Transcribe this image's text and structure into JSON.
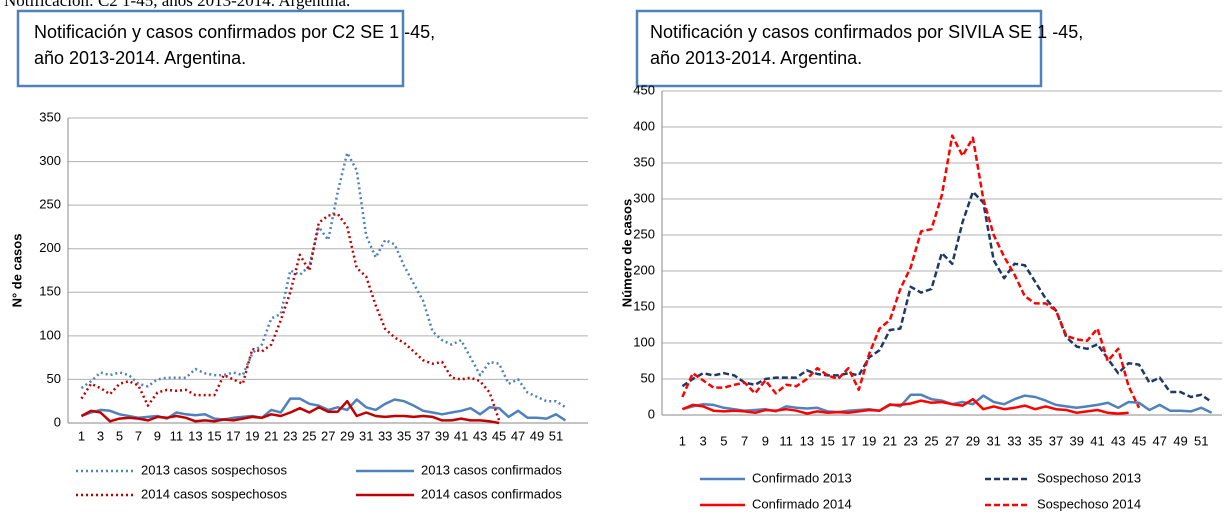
{
  "page_caption": "Notificación: C2 1-45, años 2013-2014. Argentina.",
  "chart_data": [
    {
      "type": "line",
      "title": [
        "Notificación y casos confirmados por C2 SE 1 -45,",
        "año 2013-2014. Argentina."
      ],
      "ylabel": "N° de casos",
      "x": [
        1,
        2,
        3,
        4,
        5,
        6,
        7,
        8,
        9,
        10,
        11,
        12,
        13,
        14,
        15,
        16,
        17,
        18,
        19,
        20,
        21,
        22,
        23,
        24,
        25,
        26,
        27,
        28,
        29,
        30,
        31,
        32,
        33,
        34,
        35,
        36,
        37,
        38,
        39,
        40,
        41,
        42,
        43,
        44,
        45,
        46,
        47,
        48,
        49,
        50,
        51,
        52
      ],
      "xlim": [
        0,
        53
      ],
      "xticks": [
        1,
        3,
        5,
        7,
        9,
        11,
        13,
        15,
        17,
        19,
        21,
        23,
        25,
        27,
        29,
        31,
        33,
        35,
        37,
        39,
        41,
        43,
        45,
        47,
        49,
        51
      ],
      "ylim": [
        0,
        350
      ],
      "yticks": [
        0,
        50,
        100,
        150,
        200,
        250,
        300,
        350
      ],
      "grid": true,
      "series": [
        {
          "name": "2013 casos sospechosos",
          "color": "#4f81bd",
          "line_style": "dotted",
          "values": [
            40,
            48,
            58,
            55,
            58,
            55,
            45,
            42,
            50,
            52,
            52,
            52,
            62,
            57,
            55,
            55,
            58,
            55,
            80,
            90,
            120,
            125,
            175,
            170,
            180,
            225,
            210,
            265,
            310,
            290,
            215,
            190,
            210,
            205,
            180,
            160,
            140,
            105,
            95,
            90,
            95,
            75,
            55,
            70,
            68,
            45,
            50,
            35,
            30,
            25,
            25,
            18
          ]
        },
        {
          "name": "2013 casos confirmados",
          "color": "#4f81bd",
          "line_style": "solid",
          "values": [
            8,
            12,
            15,
            14,
            10,
            8,
            6,
            7,
            8,
            5,
            12,
            10,
            9,
            10,
            5,
            4,
            6,
            7,
            8,
            6,
            15,
            12,
            28,
            28,
            22,
            20,
            15,
            18,
            15,
            27,
            18,
            15,
            22,
            27,
            25,
            20,
            14,
            12,
            10,
            12,
            14,
            17,
            10,
            18,
            17,
            7,
            14,
            6,
            6,
            5,
            10,
            3
          ]
        },
        {
          "name": "2014 casos sospechosos",
          "color": "#c00000",
          "line_style": "dotted",
          "values": [
            28,
            45,
            40,
            33,
            45,
            48,
            43,
            20,
            35,
            38,
            37,
            38,
            32,
            32,
            32,
            55,
            50,
            45,
            85,
            82,
            90,
            118,
            150,
            193,
            175,
            230,
            238,
            240,
            225,
            178,
            168,
            135,
            108,
            98,
            92,
            82,
            72,
            68,
            70,
            52,
            50,
            52,
            48,
            35,
            3,
            null,
            null,
            null,
            null,
            null,
            null,
            null
          ]
        },
        {
          "name": "2014 casos confirmados",
          "color": "#c00000",
          "line_style": "solid",
          "values": [
            8,
            14,
            12,
            2,
            5,
            6,
            5,
            3,
            7,
            6,
            8,
            6,
            2,
            3,
            2,
            4,
            3,
            5,
            7,
            6,
            10,
            8,
            12,
            17,
            12,
            18,
            13,
            13,
            25,
            8,
            12,
            8,
            7,
            8,
            8,
            7,
            8,
            7,
            3,
            3,
            5,
            3,
            3,
            2,
            0,
            null,
            null,
            null,
            null,
            null,
            null,
            null
          ]
        }
      ]
    },
    {
      "type": "line",
      "title": [
        "Notificación y casos confirmados por SIVILA SE 1 -45,",
        "año 2013-2014. Argentina."
      ],
      "ylabel": "Número de casos",
      "x": [
        1,
        2,
        3,
        4,
        5,
        6,
        7,
        8,
        9,
        10,
        11,
        12,
        13,
        14,
        15,
        16,
        17,
        18,
        19,
        20,
        21,
        22,
        23,
        24,
        25,
        26,
        27,
        28,
        29,
        30,
        31,
        32,
        33,
        34,
        35,
        36,
        37,
        38,
        39,
        40,
        41,
        42,
        43,
        44,
        45,
        46,
        47,
        48,
        49,
        50,
        51,
        52
      ],
      "xlim": [
        0,
        53
      ],
      "xticks": [
        1,
        3,
        5,
        7,
        9,
        11,
        13,
        15,
        17,
        19,
        21,
        23,
        25,
        27,
        29,
        31,
        33,
        35,
        37,
        39,
        41,
        43,
        45,
        47,
        49,
        51
      ],
      "ylim": [
        0,
        450
      ],
      "yticks": [
        0,
        50,
        100,
        150,
        200,
        250,
        300,
        350,
        400,
        450
      ],
      "grid": true,
      "series": [
        {
          "name": "Confirmado 2013",
          "color": "#4f81bd",
          "line_style": "solid",
          "values": [
            8,
            12,
            15,
            14,
            10,
            8,
            6,
            7,
            8,
            5,
            12,
            10,
            9,
            10,
            5,
            4,
            6,
            7,
            8,
            6,
            15,
            12,
            28,
            28,
            22,
            20,
            15,
            18,
            15,
            27,
            18,
            15,
            22,
            27,
            25,
            20,
            14,
            12,
            10,
            12,
            14,
            17,
            10,
            18,
            17,
            7,
            14,
            6,
            6,
            5,
            10,
            3
          ]
        },
        {
          "name": "Sospechoso 2013",
          "color": "#1f3864",
          "line_style": "dashed",
          "values": [
            40,
            50,
            58,
            55,
            58,
            55,
            45,
            42,
            50,
            52,
            52,
            52,
            62,
            57,
            55,
            55,
            58,
            55,
            80,
            90,
            118,
            120,
            178,
            170,
            175,
            225,
            210,
            268,
            310,
            295,
            215,
            190,
            210,
            208,
            185,
            162,
            145,
            108,
            95,
            92,
            98,
            78,
            58,
            72,
            70,
            45,
            52,
            32,
            32,
            25,
            28,
            18
          ]
        },
        {
          "name": "Confirmado 2014",
          "color": "#ff0000",
          "line_style": "solid",
          "values": [
            8,
            14,
            12,
            6,
            5,
            6,
            5,
            3,
            7,
            6,
            8,
            6,
            2,
            5,
            3,
            4,
            3,
            5,
            7,
            6,
            14,
            14,
            16,
            20,
            17,
            18,
            15,
            13,
            22,
            8,
            12,
            8,
            10,
            13,
            8,
            12,
            8,
            7,
            3,
            5,
            7,
            3,
            2,
            3,
            null,
            null,
            null,
            null,
            null,
            null,
            null,
            null
          ]
        },
        {
          "name": "Sospechoso 2014",
          "color": "#ff0000",
          "line_style": "dashed",
          "values": [
            25,
            58,
            48,
            38,
            38,
            42,
            45,
            30,
            48,
            30,
            42,
            40,
            50,
            65,
            55,
            50,
            65,
            35,
            85,
            120,
            132,
            175,
            205,
            255,
            258,
            305,
            388,
            360,
            385,
            300,
            250,
            220,
            195,
            165,
            155,
            155,
            145,
            110,
            105,
            103,
            120,
            75,
            92,
            40,
            10,
            null,
            null,
            null,
            null,
            null,
            null,
            null
          ]
        }
      ]
    }
  ]
}
